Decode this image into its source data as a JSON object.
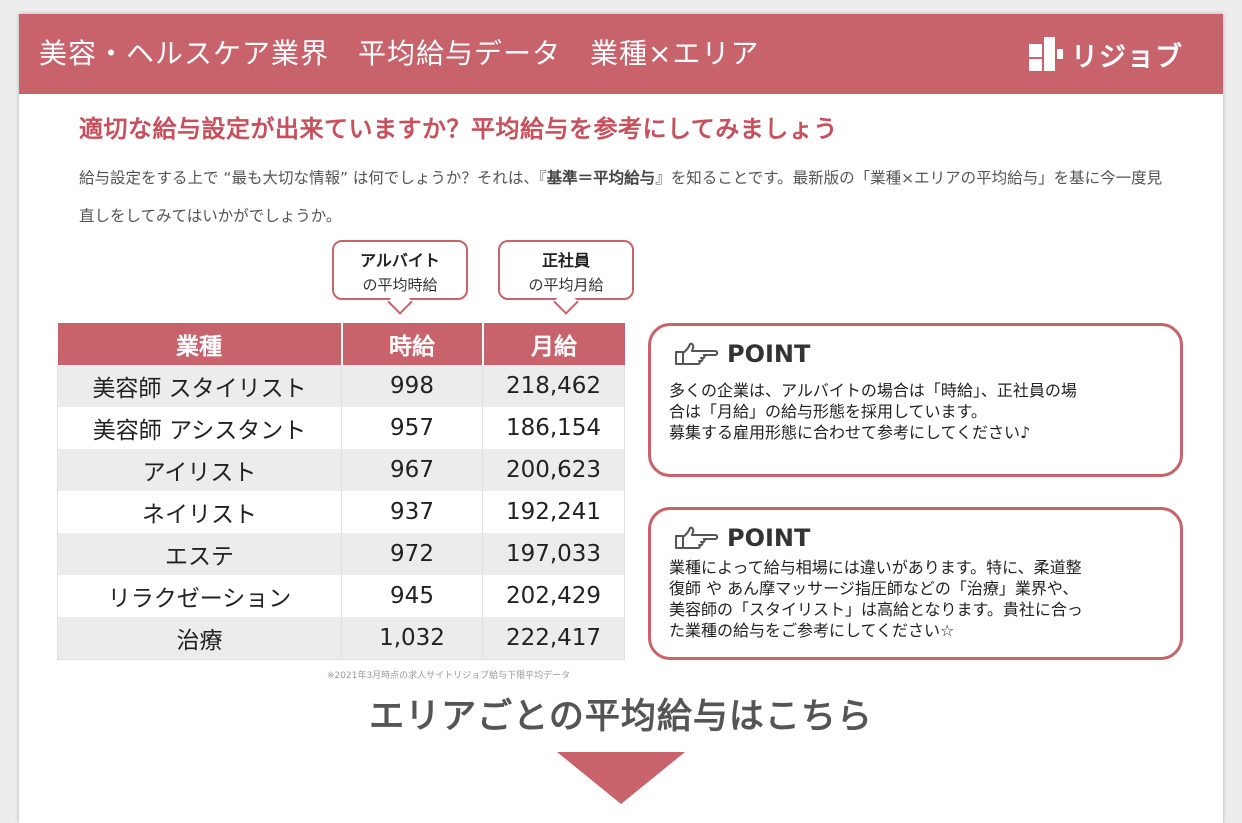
{
  "header": {
    "title": "美容・ヘルスケア業界　平均給与データ　業種×エリア",
    "logo_text": "リジョブ"
  },
  "subtitle": "適切な給与設定が出来ていますか？平均給与を参考にしてみましょう",
  "intro": {
    "part1": "給与設定をする上で “最も大切な情報” は何でしょうか？それは、『",
    "bold": "基準＝平均給与",
    "part2": "』を知ることです。最新版の「業種×エリアの平均給与」を基に今一度見直しをしてみてはいかがでしょうか。"
  },
  "bubbles": {
    "part_time": {
      "title": "アルバイト",
      "sub": "の平均時給"
    },
    "full_time": {
      "title": "正社員",
      "sub": "の平均月給"
    }
  },
  "table": {
    "headers": [
      "業種",
      "時給",
      "月給"
    ],
    "rows": [
      [
        "美容師 スタイリスト",
        "998",
        "218,462"
      ],
      [
        "美容師 アシスタント",
        "957",
        "186,154"
      ],
      [
        "アイリスト",
        "967",
        "200,623"
      ],
      [
        "ネイリスト",
        "937",
        "192,241"
      ],
      [
        "エステ",
        "972",
        "197,033"
      ],
      [
        "リラクゼーション",
        "945",
        "202,429"
      ],
      [
        "治療",
        "1,032",
        "222,417"
      ]
    ],
    "note": "※2021年3月時点の求人サイトリジョブ給与下限平均データ"
  },
  "points": [
    {
      "icon": "pointing-hand-icon",
      "title": "POINT",
      "lines": [
        "多くの企業は、アルバイトの場合は「時給」、正社員の場",
        "合は「月給」の給与形態を採用しています。",
        "募集する雇用形態に合わせて参考にしてください♪"
      ]
    },
    {
      "icon": "pointing-hand-icon",
      "title": "POINT",
      "lines": [
        "業種によって給与相場には違いがあります。特に、柔道整",
        "復師 や あん摩マッサージ指圧師などの「治療」業界や、",
        "美容師の「スタイリスト」は高給となります。貴社に合っ",
        "た業種の給与をご参考にしてください☆"
      ]
    }
  ],
  "bottom": {
    "title": "エリアごとの平均給与はこちら"
  },
  "colors": {
    "accent": "#c8626b",
    "subtitle": "#c8505c"
  }
}
